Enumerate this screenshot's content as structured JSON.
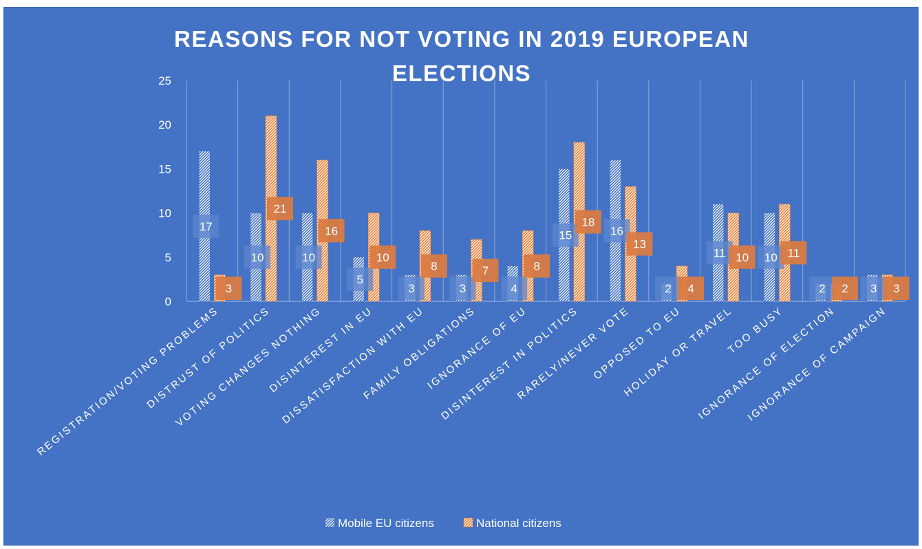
{
  "chart_data": {
    "type": "bar",
    "title": "REASONS FOR NOT VOTING IN 2019 EUROPEAN ELECTIONS",
    "title_lines": [
      "REASONS FOR NOT VOTING IN 2019 EUROPEAN",
      "ELECTIONS"
    ],
    "categories": [
      "REGISTRATION/VOTING PROBLEMS",
      "DISTRUST OF POLITICS",
      "VOTING CHANGES NOTHING",
      "DISINTEREST IN EU",
      "DISSATISFACTION WITH EU",
      "FAMILY OBLIGATIONS",
      "IGNORANCE OF EU",
      "DISINTEREST IN POLITICS",
      "RARELY/NEVER VOTE",
      "OPPOSED TO EU",
      "HOLIDAY OR TRAVEL",
      "TOO BUSY",
      "IGNORANCE OF ELECTION",
      "IGNORANCE OF CAMPAIGN"
    ],
    "series": [
      {
        "name": "Mobile EU citizens",
        "values": [
          17,
          10,
          10,
          5,
          3,
          3,
          4,
          15,
          16,
          2,
          11,
          10,
          2,
          3
        ]
      },
      {
        "name": "National citizens",
        "values": [
          3,
          21,
          16,
          10,
          8,
          7,
          8,
          18,
          13,
          4,
          10,
          11,
          2,
          3
        ]
      }
    ],
    "ylim": [
      0,
      25
    ],
    "yticks": [
      0,
      5,
      10,
      15,
      20,
      25
    ],
    "xlabel": "",
    "ylabel": "",
    "grid": "vertical category separators",
    "legend_position": "bottom",
    "colors": {
      "background": "#4472C4",
      "mobile": "#4472C4",
      "national": "#ED7D31",
      "label_box_national": "#D97B45",
      "label_box_mobile": "#5B86CF",
      "text": "#ffffff"
    }
  }
}
